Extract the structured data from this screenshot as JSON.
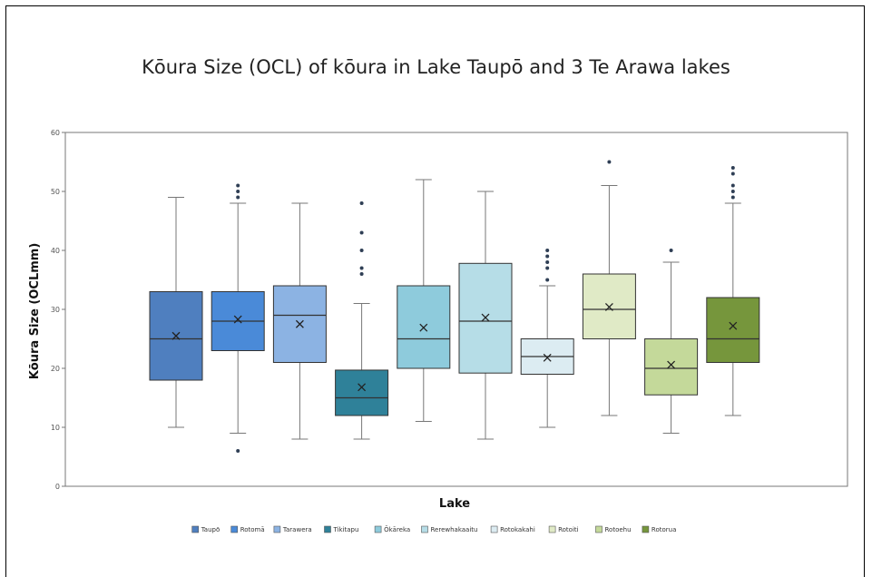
{
  "chart_data": {
    "type": "boxplot",
    "title": "Kōura Size (OCL) of kōura in Lake Taupō and 3 Te Arawa lakes",
    "xlabel": "Lake",
    "ylabel": "Kōura Size (OCLmm)",
    "ylim": [
      0,
      60
    ],
    "yticks": [
      0,
      10,
      20,
      30,
      40,
      50,
      60
    ],
    "legend_position": "bottom",
    "series": [
      {
        "name": "Taupō",
        "color": "#4f7fbf",
        "min": 10,
        "q1": 18,
        "median": 25,
        "q3": 33,
        "max": 49,
        "mean": 25.5,
        "outliers": []
      },
      {
        "name": "Rotomā",
        "color": "#4a8ad8",
        "min": 9,
        "q1": 23,
        "median": 28,
        "q3": 33,
        "max": 48,
        "mean": 28.3,
        "outliers": [
          6,
          49,
          50,
          51
        ]
      },
      {
        "name": "Tarawera",
        "color": "#8cb3e3",
        "min": 8,
        "q1": 21,
        "median": 29,
        "q3": 34,
        "max": 48,
        "mean": 27.5,
        "outliers": []
      },
      {
        "name": "Tikitapu",
        "color": "#2f8199",
        "min": 8,
        "q1": 12,
        "median": 15,
        "q3": 19.7,
        "max": 31,
        "mean": 16.8,
        "outliers": [
          36,
          37,
          40,
          43,
          48
        ]
      },
      {
        "name": "Ōkāreka",
        "color": "#8ecbdc",
        "min": 11,
        "q1": 20,
        "median": 25,
        "q3": 34,
        "max": 52,
        "mean": 26.9,
        "outliers": []
      },
      {
        "name": "Rerewhakaaitu",
        "color": "#b6dde7",
        "min": 8,
        "q1": 19.2,
        "median": 28,
        "q3": 37.8,
        "max": 50,
        "mean": 28.6,
        "outliers": []
      },
      {
        "name": "Rotokakahi",
        "color": "#dcecf2",
        "min": 10,
        "q1": 19,
        "median": 22,
        "q3": 25,
        "max": 34,
        "mean": 21.8,
        "outliers": [
          35,
          37,
          38,
          39,
          40
        ]
      },
      {
        "name": "Rotoiti",
        "color": "#e0eac6",
        "min": 12,
        "q1": 25,
        "median": 30,
        "q3": 36,
        "max": 51,
        "mean": 30.4,
        "outliers": [
          55
        ]
      },
      {
        "name": "Rotoehu",
        "color": "#c4d99a",
        "min": 9,
        "q1": 15.5,
        "median": 20,
        "q3": 25,
        "max": 38,
        "mean": 20.6,
        "outliers": [
          40
        ]
      },
      {
        "name": "Rotorua",
        "color": "#76963c",
        "min": 12,
        "q1": 21,
        "median": 25,
        "q3": 32,
        "max": 48,
        "mean": 27.2,
        "outliers": [
          49,
          50,
          51,
          53,
          54
        ]
      }
    ]
  }
}
